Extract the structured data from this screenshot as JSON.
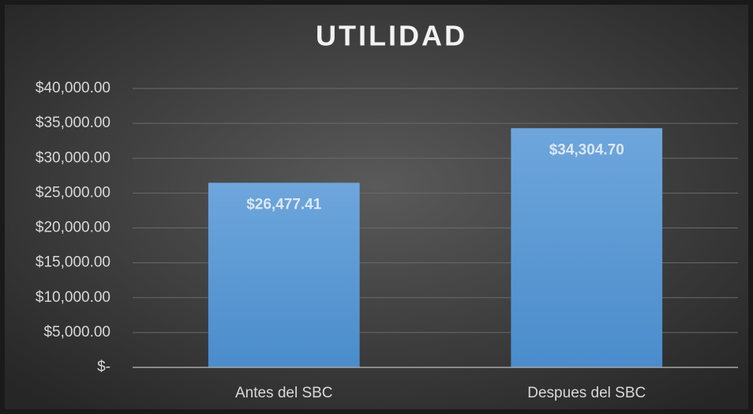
{
  "chart_data": {
    "type": "bar",
    "title": "UTILIDAD",
    "categories": [
      "Antes del SBC",
      "Despues del SBC"
    ],
    "values": [
      26477.41,
      34304.7
    ],
    "value_labels": [
      "$26,477.41",
      "$34,304.70"
    ],
    "color": "#5b9bd5",
    "ylim": [
      0,
      40000
    ],
    "yticks": [
      {
        "value": 0,
        "label": "$-"
      },
      {
        "value": 5000,
        "label": "$5,000.00"
      },
      {
        "value": 10000,
        "label": "$10,000.00"
      },
      {
        "value": 15000,
        "label": "$15,000.00"
      },
      {
        "value": 20000,
        "label": "$20,000.00"
      },
      {
        "value": 25000,
        "label": "$25,000.00"
      },
      {
        "value": 30000,
        "label": "$30,000.00"
      },
      {
        "value": 35000,
        "label": "$35,000.00"
      },
      {
        "value": 40000,
        "label": "$40,000.00"
      }
    ],
    "grid": true
  }
}
